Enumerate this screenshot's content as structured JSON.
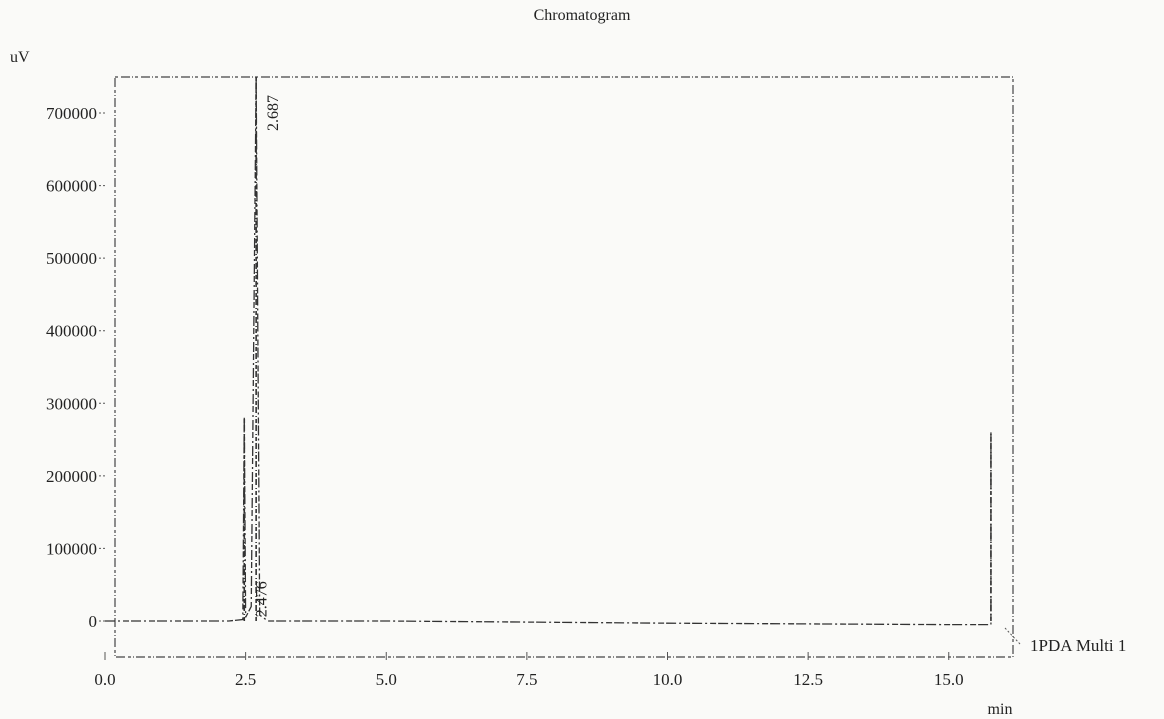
{
  "chart_data": {
    "type": "line",
    "title": "Chromatogram",
    "ylabel": "uV",
    "xlabel": "min",
    "xlim": [
      0.0,
      16.0
    ],
    "ylim": [
      -40000,
      750000
    ],
    "x_ticks": [
      "0.0",
      "2.5",
      "5.0",
      "7.5",
      "10.0",
      "12.5",
      "15.0"
    ],
    "x_tick_values": [
      0.0,
      2.5,
      5.0,
      7.5,
      10.0,
      12.5,
      15.0
    ],
    "y_ticks": [
      "0",
      "100000",
      "200000",
      "300000",
      "400000",
      "500000",
      "600000",
      "700000"
    ],
    "y_tick_values": [
      0,
      100000,
      200000,
      300000,
      400000,
      500000,
      600000,
      700000
    ],
    "grid": false,
    "series": [
      {
        "name": "1PDA Multi 1",
        "x": [
          0.0,
          2.2,
          2.45,
          2.476,
          2.5,
          2.6,
          2.687,
          2.75,
          2.9,
          5.0,
          10.0,
          15.0,
          15.5,
          15.75,
          15.75
        ],
        "y": [
          0,
          0,
          2000,
          280000,
          5000,
          20000,
          750000,
          8000,
          0,
          0,
          -3000,
          -5000,
          -5000,
          -5000,
          260000
        ]
      }
    ],
    "peak_labels": [
      {
        "label": "2.687",
        "x": 2.687,
        "y": 700000
      },
      {
        "label": "2.476",
        "x": 2.476,
        "y": 30000
      }
    ],
    "legend": {
      "entries": [
        "1PDA Multi 1"
      ],
      "placement": "right"
    }
  }
}
